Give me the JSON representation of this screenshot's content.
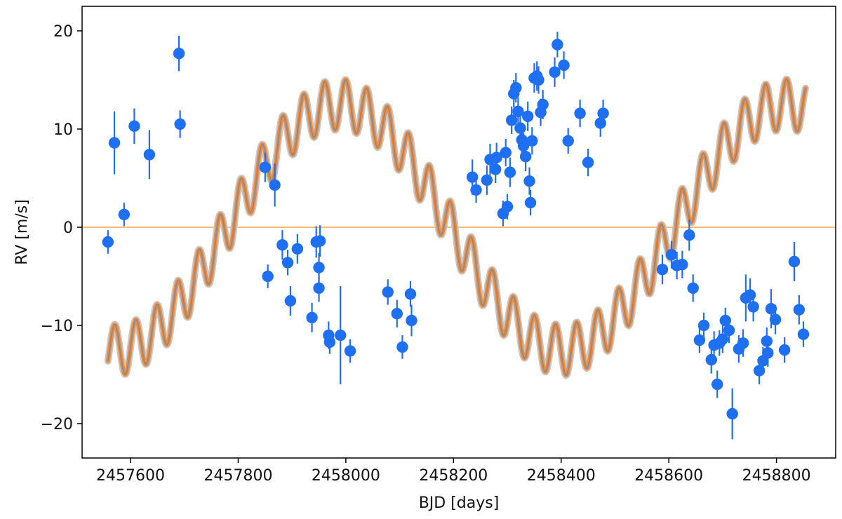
{
  "chart_data": {
    "type": "scatter",
    "title": "",
    "xlabel": "BJD [days]",
    "ylabel": "RV [m/s]",
    "xlim": [
      2457510,
      2458910
    ],
    "ylim": [
      -23.5,
      22.5
    ],
    "xticks": [
      2457600,
      2457800,
      2458000,
      2458200,
      2458400,
      2458600,
      2458800
    ],
    "xtick_labels": [
      "2457600",
      "2457800",
      "2458000",
      "2458200",
      "2458400",
      "2458600",
      "2458800"
    ],
    "yticks": [
      20,
      10,
      0,
      -10,
      -20
    ],
    "ytick_labels": [
      "20",
      "10",
      "0",
      "−10",
      "−20"
    ],
    "grid": false,
    "reference_line": {
      "y": 0,
      "color": "#f5a54a"
    },
    "model": {
      "x_range": [
        2457558,
        2458855
      ],
      "outer_band_color": "#c8c8c8",
      "inner_band_color": "#f58b3c",
      "median_color": "#8c8c8c",
      "components": [
        {
          "amplitude": 12.5,
          "period": 830,
          "phase_ref": 2457780
        },
        {
          "amplitude": 2.6,
          "period": 39,
          "phase_ref": 2457600
        }
      ]
    },
    "series": [
      {
        "color": "#1f6ff2",
        "points": [
          {
            "x": 2457558,
            "y": -1.5,
            "err": 1.2
          },
          {
            "x": 2457570,
            "y": 8.6,
            "err": 3.2
          },
          {
            "x": 2457588,
            "y": 1.3,
            "err": 1.2
          },
          {
            "x": 2457607,
            "y": 10.3,
            "err": 1.8
          },
          {
            "x": 2457635,
            "y": 7.4,
            "err": 2.5
          },
          {
            "x": 2457690,
            "y": 17.7,
            "err": 1.8
          },
          {
            "x": 2457692,
            "y": 10.5,
            "err": 1.4
          },
          {
            "x": 2457850,
            "y": 6.1,
            "err": 1.5
          },
          {
            "x": 2457855,
            "y": -5.0,
            "err": 1.2
          },
          {
            "x": 2457868,
            "y": 4.3,
            "err": 2.2
          },
          {
            "x": 2457882,
            "y": -1.8,
            "err": 1.5
          },
          {
            "x": 2457892,
            "y": -3.6,
            "err": 1.3
          },
          {
            "x": 2457897,
            "y": -7.5,
            "err": 1.5
          },
          {
            "x": 2457910,
            "y": -2.2,
            "err": 1.5
          },
          {
            "x": 2457937,
            "y": -9.2,
            "err": 1.5
          },
          {
            "x": 2457945,
            "y": -1.5,
            "err": 1.6
          },
          {
            "x": 2457950,
            "y": -4.1,
            "err": 1.5
          },
          {
            "x": 2457950,
            "y": -6.2,
            "err": 1.4
          },
          {
            "x": 2457952,
            "y": -1.4,
            "err": 1.6
          },
          {
            "x": 2457968,
            "y": -11.0,
            "err": 1.4
          },
          {
            "x": 2457970,
            "y": -11.7,
            "err": 1.2
          },
          {
            "x": 2457990,
            "y": -11.0,
            "err": 5.0
          },
          {
            "x": 2458008,
            "y": -12.6,
            "err": 1.2
          },
          {
            "x": 2458078,
            "y": -6.6,
            "err": 1.3
          },
          {
            "x": 2458095,
            "y": -8.8,
            "err": 1.4
          },
          {
            "x": 2458105,
            "y": -12.2,
            "err": 1.2
          },
          {
            "x": 2458120,
            "y": -6.8,
            "err": 1.3
          },
          {
            "x": 2458122,
            "y": -9.5,
            "err": 1.6
          },
          {
            "x": 2458235,
            "y": 5.1,
            "err": 1.8
          },
          {
            "x": 2458242,
            "y": 3.8,
            "err": 1.3
          },
          {
            "x": 2458262,
            "y": 4.8,
            "err": 1.5
          },
          {
            "x": 2458268,
            "y": 6.9,
            "err": 1.6
          },
          {
            "x": 2458278,
            "y": 5.9,
            "err": 1.4
          },
          {
            "x": 2458280,
            "y": 7.1,
            "err": 1.5
          },
          {
            "x": 2458292,
            "y": 1.4,
            "err": 1.3
          },
          {
            "x": 2458297,
            "y": 7.6,
            "err": 1.4
          },
          {
            "x": 2458300,
            "y": 2.1,
            "err": 1.3
          },
          {
            "x": 2458305,
            "y": 5.6,
            "err": 1.5
          },
          {
            "x": 2458308,
            "y": 10.9,
            "err": 1.4
          },
          {
            "x": 2458312,
            "y": 13.6,
            "err": 1.4
          },
          {
            "x": 2458316,
            "y": 14.2,
            "err": 1.5
          },
          {
            "x": 2458320,
            "y": 11.8,
            "err": 1.4
          },
          {
            "x": 2458324,
            "y": 10.1,
            "err": 1.5
          },
          {
            "x": 2458327,
            "y": 8.9,
            "err": 1.4
          },
          {
            "x": 2458330,
            "y": 8.3,
            "err": 1.3
          },
          {
            "x": 2458334,
            "y": 7.2,
            "err": 1.5
          },
          {
            "x": 2458338,
            "y": 11.3,
            "err": 1.5
          },
          {
            "x": 2458341,
            "y": 4.7,
            "err": 1.4
          },
          {
            "x": 2458343,
            "y": 2.5,
            "err": 1.3
          },
          {
            "x": 2458346,
            "y": 8.8,
            "err": 1.4
          },
          {
            "x": 2458350,
            "y": 15.2,
            "err": 1.5
          },
          {
            "x": 2458355,
            "y": 15.4,
            "err": 1.5
          },
          {
            "x": 2458358,
            "y": 15.0,
            "err": 1.4
          },
          {
            "x": 2458362,
            "y": 11.7,
            "err": 1.4
          },
          {
            "x": 2458366,
            "y": 12.5,
            "err": 1.5
          },
          {
            "x": 2458388,
            "y": 15.8,
            "err": 1.5
          },
          {
            "x": 2458393,
            "y": 18.6,
            "err": 1.3
          },
          {
            "x": 2458405,
            "y": 16.5,
            "err": 1.4
          },
          {
            "x": 2458413,
            "y": 8.8,
            "err": 1.3
          },
          {
            "x": 2458435,
            "y": 11.6,
            "err": 1.4
          },
          {
            "x": 2458450,
            "y": 6.6,
            "err": 1.4
          },
          {
            "x": 2458473,
            "y": 10.6,
            "err": 1.4
          },
          {
            "x": 2458478,
            "y": 11.6,
            "err": 1.4
          },
          {
            "x": 2458588,
            "y": -4.3,
            "err": 1.5
          },
          {
            "x": 2458605,
            "y": -2.8,
            "err": 1.4
          },
          {
            "x": 2458615,
            "y": -3.9,
            "err": 1.4
          },
          {
            "x": 2458625,
            "y": -3.8,
            "err": 1.4
          },
          {
            "x": 2458638,
            "y": -0.8,
            "err": 1.6
          },
          {
            "x": 2458645,
            "y": -6.2,
            "err": 1.4
          },
          {
            "x": 2458657,
            "y": -11.5,
            "err": 1.3
          },
          {
            "x": 2458665,
            "y": -10.0,
            "err": 1.3
          },
          {
            "x": 2458679,
            "y": -13.5,
            "err": 1.4
          },
          {
            "x": 2458684,
            "y": -12.0,
            "err": 1.4
          },
          {
            "x": 2458690,
            "y": -16.0,
            "err": 1.4
          },
          {
            "x": 2458694,
            "y": -11.8,
            "err": 1.3
          },
          {
            "x": 2458700,
            "y": -11.4,
            "err": 1.4
          },
          {
            "x": 2458705,
            "y": -9.5,
            "err": 1.3
          },
          {
            "x": 2458712,
            "y": -10.5,
            "err": 1.3
          },
          {
            "x": 2458718,
            "y": -19.0,
            "err": 2.6
          },
          {
            "x": 2458730,
            "y": -12.4,
            "err": 1.4
          },
          {
            "x": 2458738,
            "y": -11.8,
            "err": 1.4
          },
          {
            "x": 2458743,
            "y": -7.2,
            "err": 2.4
          },
          {
            "x": 2458751,
            "y": -6.9,
            "err": 1.7
          },
          {
            "x": 2458757,
            "y": -8.1,
            "err": 1.5
          },
          {
            "x": 2458768,
            "y": -14.6,
            "err": 1.4
          },
          {
            "x": 2458775,
            "y": -13.6,
            "err": 1.4
          },
          {
            "x": 2458782,
            "y": -11.6,
            "err": 1.4
          },
          {
            "x": 2458784,
            "y": -12.8,
            "err": 1.4
          },
          {
            "x": 2458790,
            "y": -8.3,
            "err": 2.0
          },
          {
            "x": 2458798,
            "y": -9.4,
            "err": 1.5
          },
          {
            "x": 2458815,
            "y": -12.5,
            "err": 1.3
          },
          {
            "x": 2458833,
            "y": -3.5,
            "err": 2.0
          },
          {
            "x": 2458842,
            "y": -8.4,
            "err": 1.5
          },
          {
            "x": 2458850,
            "y": -10.9,
            "err": 1.3
          }
        ]
      }
    ]
  }
}
